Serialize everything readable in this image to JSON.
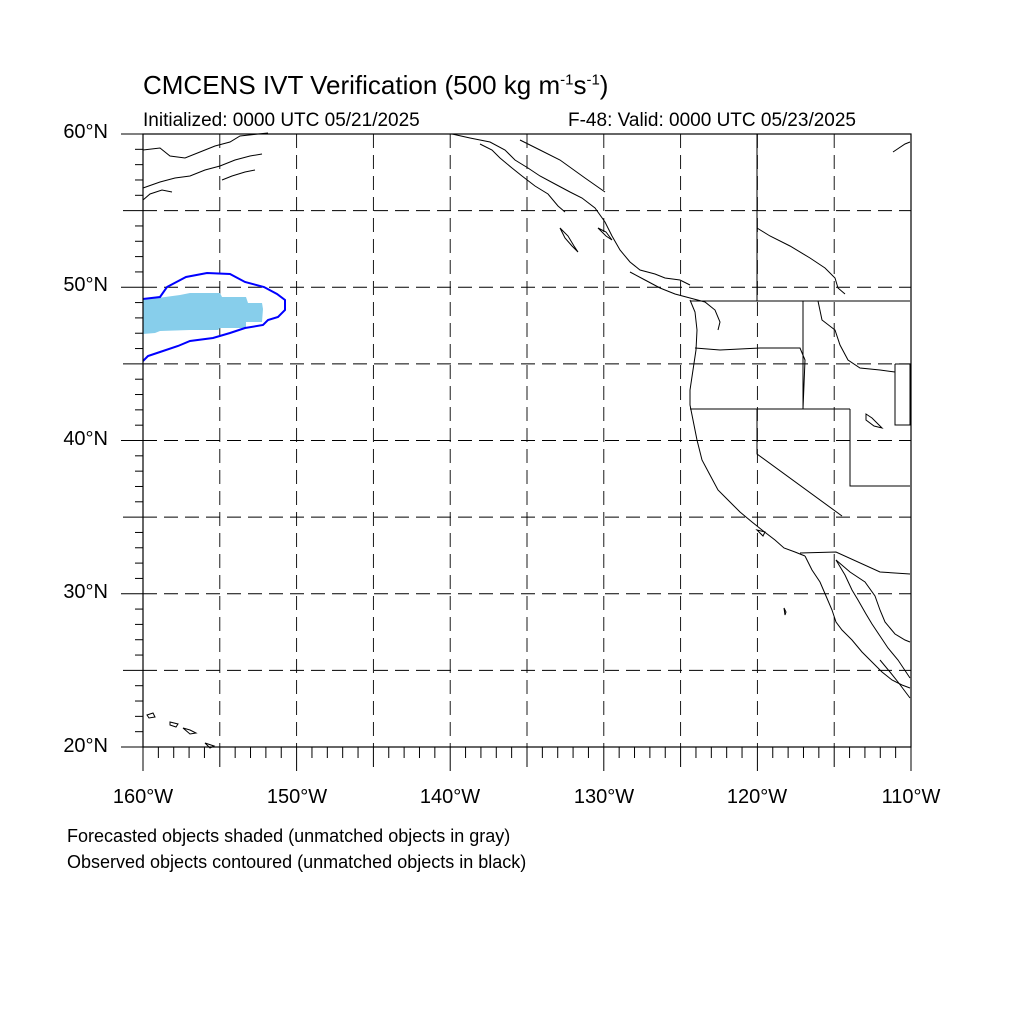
{
  "header": {
    "title_main": "CMCENS IVT Verification (500 kg m",
    "title_unit_exp1": "-1",
    "title_s": "s",
    "title_unit_exp2": "-1",
    "title_close": ")",
    "initialized": "Initialized: 0000 UTC 05/21/2025",
    "valid": "F-48: Valid: 0000 UTC 05/23/2025"
  },
  "map": {
    "lon_range": [
      -160,
      -110
    ],
    "lat_range": [
      20,
      60
    ],
    "lat_labels": [
      "60°N",
      "50°N",
      "40°N",
      "30°N",
      "20°N"
    ],
    "lon_labels": [
      "160°W",
      "150°W",
      "140°W",
      "130°W",
      "120°W",
      "110°W"
    ],
    "grid": "dashed every 5°",
    "forecast_object_color": "#87ceeb",
    "observed_contour_color": "#0000ff",
    "coastline_color": "#000000"
  },
  "legend": {
    "line1": "Forecasted objects shaded (unmatched objects in gray)",
    "line2": "Observed objects contoured (unmatched objects in black)"
  }
}
